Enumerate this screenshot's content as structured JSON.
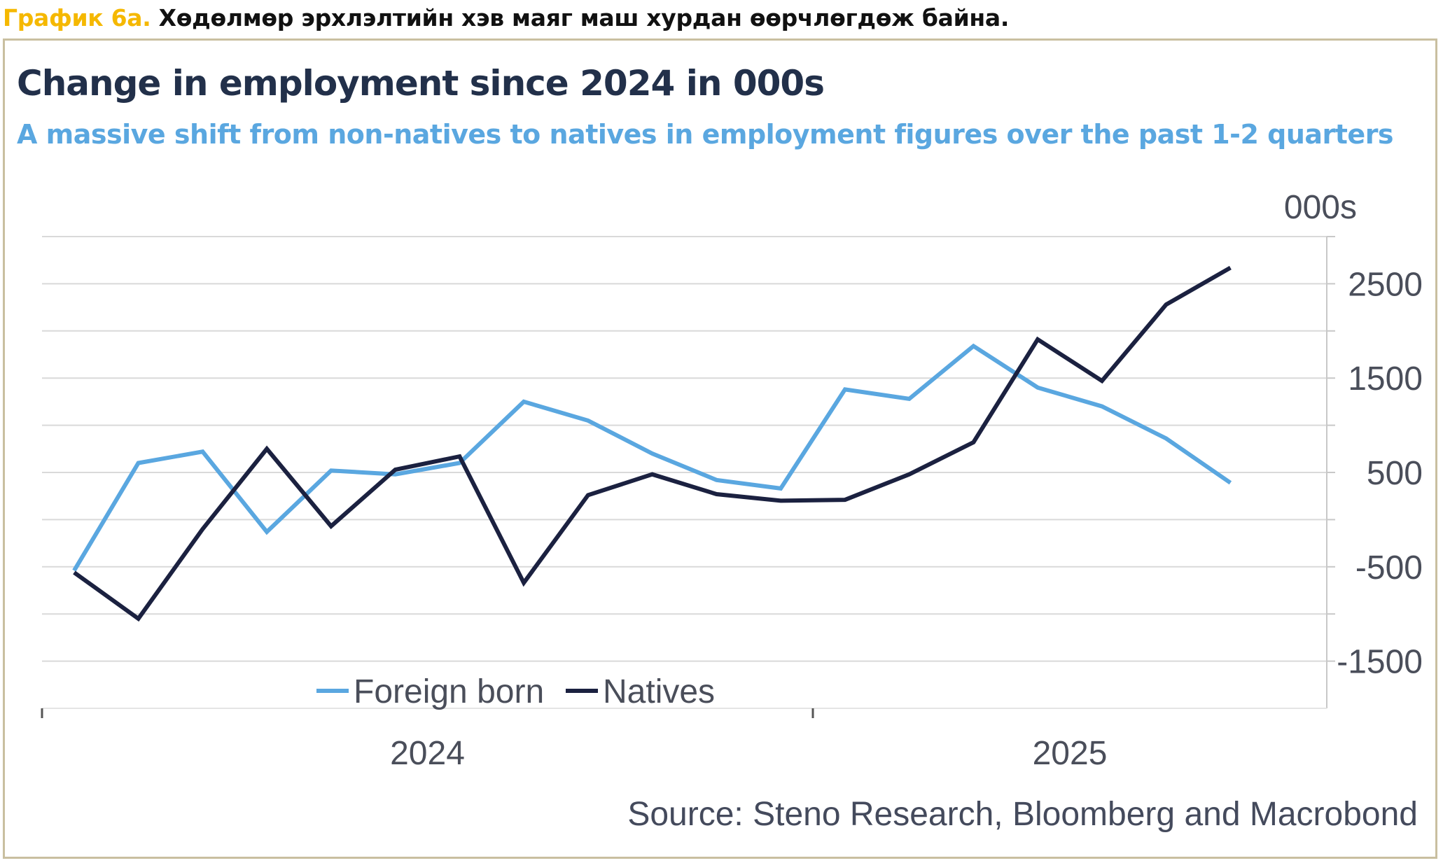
{
  "caption": {
    "label": "График 6а.",
    "text": "Хөдөлмөр эрхлэлтийн хэв маяг маш хурдан өөрчлөгдөж байна."
  },
  "colors": {
    "foreign": "#5aa7e0",
    "natives": "#1b2140",
    "grid": "#d9d9d9",
    "caption_label": "#f5b800",
    "border": "#c9bfa0"
  },
  "chart_data": {
    "type": "line",
    "title": "Change in employment since 2024 in 000s",
    "subtitle": "A massive shift from non-natives to natives in employment figures over the past 1-2 quarters",
    "y_unit_label": "000s",
    "ylim": [
      -2000,
      3000
    ],
    "y_ticks": [
      2500,
      1500,
      500,
      -500,
      -1500
    ],
    "y_tick_labels": [
      "2500",
      "1500",
      "500",
      "-500",
      "-1500"
    ],
    "x_labels": [
      "2024",
      "2025"
    ],
    "x_label_positions": [
      5.5,
      15.5
    ],
    "x_tick_positions": [
      -0.5,
      11.5
    ],
    "xlim": [
      -0.5,
      19.5
    ],
    "x": [
      0,
      1,
      2,
      3,
      4,
      5,
      6,
      7,
      8,
      9,
      10,
      11,
      12,
      13,
      14,
      15,
      16,
      17,
      18
    ],
    "series": [
      {
        "name": "Foreign born",
        "values": [
          -540,
          600,
          720,
          -130,
          520,
          480,
          600,
          1250,
          1050,
          700,
          420,
          330,
          1380,
          1280,
          1840,
          1400,
          1200,
          860,
          390
        ]
      },
      {
        "name": "Natives",
        "values": [
          -560,
          -1050,
          -100,
          750,
          -70,
          530,
          670,
          -670,
          260,
          480,
          270,
          200,
          210,
          480,
          820,
          1910,
          1470,
          2280,
          2670
        ]
      }
    ],
    "legend": [
      "Foreign born",
      "Natives"
    ],
    "legend_position": "bottom-center",
    "source": "Source: Steno Research, Bloomberg and Macrobond",
    "grid": true
  }
}
